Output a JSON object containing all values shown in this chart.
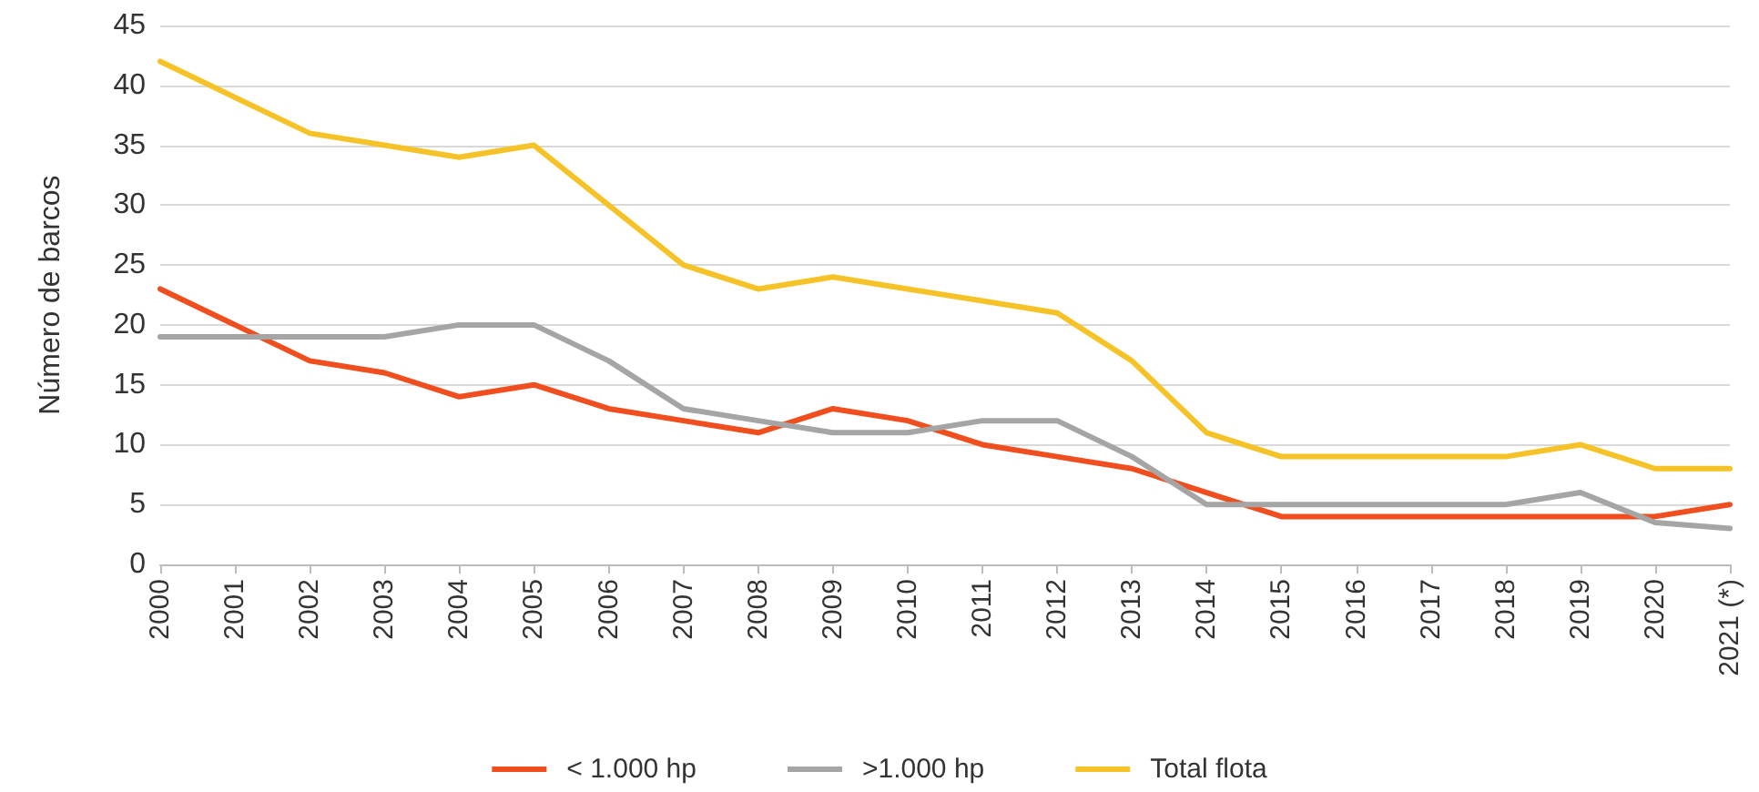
{
  "chart_data": {
    "type": "line",
    "ylabel": "Número de barcos",
    "categories": [
      "2000",
      "2001",
      "2002",
      "2003",
      "2004",
      "2005",
      "2006",
      "2007",
      "2008",
      "2009",
      "2010",
      "2011",
      "2012",
      "2013",
      "2014",
      "2015",
      "2016",
      "2017",
      "2018",
      "2019",
      "2020",
      "2021 (*)"
    ],
    "series": [
      {
        "name": "< 1.000 hp",
        "color": "#f04e1e",
        "values": [
          23,
          20,
          17,
          16,
          14,
          15,
          13,
          12,
          11,
          13,
          12,
          10,
          9,
          8,
          6,
          4,
          4,
          4,
          4,
          4,
          4,
          5
        ]
      },
      {
        "name": ">1.000 hp",
        "color": "#a5a5a5",
        "values": [
          19,
          19,
          19,
          19,
          20,
          20,
          17,
          13,
          12,
          11,
          11,
          12,
          12,
          9,
          5,
          5,
          5,
          5,
          5,
          6,
          3.5,
          3
        ]
      },
      {
        "name": "Total flota",
        "color": "#f5c328",
        "values": [
          42,
          39,
          36,
          35,
          34,
          35,
          30,
          25,
          23,
          24,
          23,
          22,
          21,
          17,
          11,
          9,
          9,
          9,
          9,
          10,
          8,
          8
        ]
      }
    ],
    "ylim": [
      0,
      45
    ],
    "yticks": [
      0,
      5,
      10,
      15,
      20,
      25,
      30,
      35,
      40,
      45
    ],
    "grid": "y",
    "legend": "bottom",
    "marker": "none",
    "line_style": "solid"
  }
}
